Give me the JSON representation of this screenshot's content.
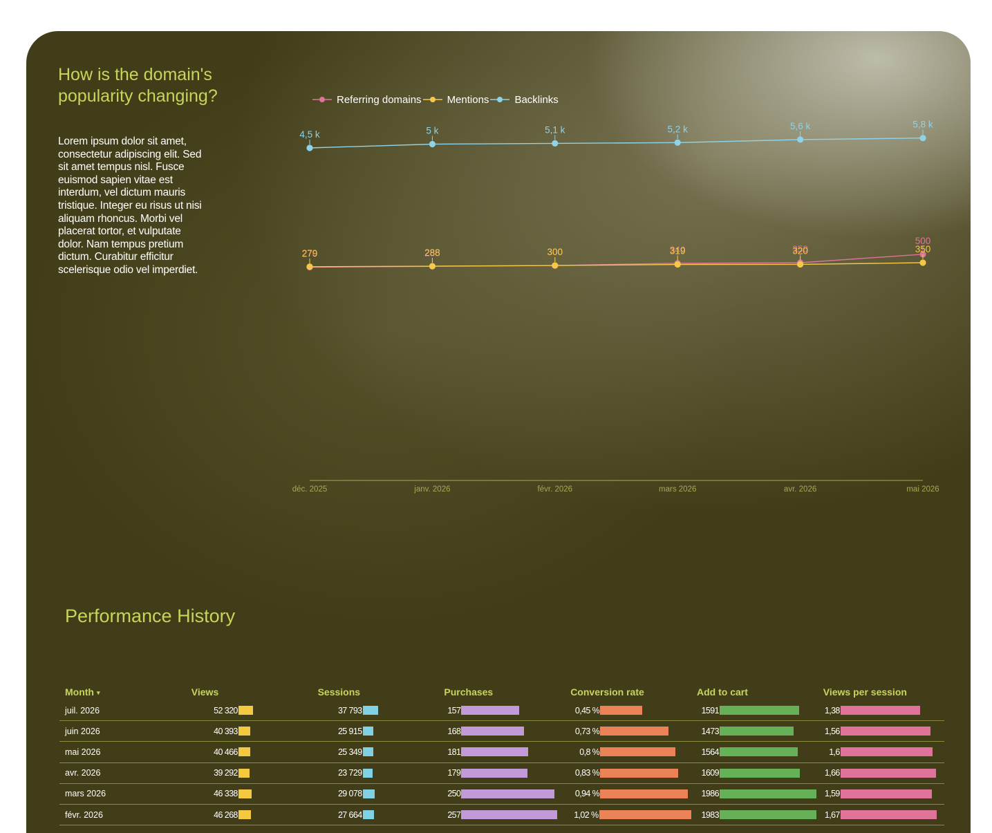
{
  "header": {
    "title": "How is the domain's popularity changing?",
    "description": "Lorem ipsum dolor sit amet, consectetur adipiscing elit. Sed sit amet tempus nisl. Fusce euismod sapien vitae est interdum, vel dictum mauris tristique. Integer eu risus ut nisi aliquam rhoncus. Morbi vel placerat tortor, et vulputate dolor. Nam tempus pretium dictum. Curabitur efficitur scelerisque odio vel imperdiet."
  },
  "chart_data": {
    "type": "line",
    "title": "",
    "xlabel": "",
    "ylabel": "",
    "x": [
      "déc. 2025",
      "janv. 2026",
      "févr. 2026",
      "mars 2026",
      "avr. 2026",
      "mai 2026"
    ],
    "series": [
      {
        "name": "Referring domains",
        "color": "#e0739a",
        "values": [
          270,
          285,
          300,
          340,
          350,
          500
        ],
        "labels": [
          "270",
          "285",
          "300",
          "340",
          "350",
          "500"
        ]
      },
      {
        "name": "Mentions",
        "color": "#f5c84a",
        "values": [
          279,
          288,
          300,
          319,
          320,
          350
        ],
        "labels": [
          "279",
          "288",
          "300",
          "319",
          "320",
          "350"
        ]
      },
      {
        "name": "Backlinks",
        "color": "#8fd3e8",
        "values": [
          4500,
          5000,
          5100,
          5200,
          5600,
          5800
        ],
        "labels": [
          "4,5 k",
          "5 k",
          "5,1 k",
          "5,2 k",
          "5,6 k",
          "5,8 k"
        ]
      }
    ],
    "legend": "top-left",
    "grid": false,
    "x_axis_color": "#a8a855"
  },
  "performance": {
    "title": "Performance History",
    "sort_indicator": "▾",
    "columns": [
      {
        "label": "Month",
        "color": null
      },
      {
        "label": "Views",
        "color": "#f5c842"
      },
      {
        "label": "Sessions",
        "color": "#7fd1e3"
      },
      {
        "label": "Purchases",
        "color": "#c29ad9"
      },
      {
        "label": "Conversion rate",
        "color": "#ec8258"
      },
      {
        "label": "Add to cart",
        "color": "#66b058"
      },
      {
        "label": "Views per session",
        "color": "#e07399"
      }
    ],
    "rows": [
      {
        "month": "juil. 2026",
        "views": "52 320",
        "sessions": "37 793",
        "purchases": "157",
        "conversion": "0,45 %",
        "cart": "1591",
        "vps": "1,38"
      },
      {
        "month": "juin 2026",
        "views": "40 393",
        "sessions": "25 915",
        "purchases": "168",
        "conversion": "0,73 %",
        "cart": "1473",
        "vps": "1,56"
      },
      {
        "month": "mai 2026",
        "views": "40 466",
        "sessions": "25 349",
        "purchases": "181",
        "conversion": "0,8 %",
        "cart": "1564",
        "vps": "1,6"
      },
      {
        "month": "avr. 2026",
        "views": "39 292",
        "sessions": "23 729",
        "purchases": "179",
        "conversion": "0,83 %",
        "cart": "1609",
        "vps": "1,66"
      },
      {
        "month": "mars 2026",
        "views": "46 338",
        "sessions": "29 078",
        "purchases": "250",
        "conversion": "0,94 %",
        "cart": "1986",
        "vps": "1,59"
      },
      {
        "month": "févr. 2026",
        "views": "46 268",
        "sessions": "27 664",
        "purchases": "257",
        "conversion": "1,02 %",
        "cart": "1983",
        "vps": "1,67"
      }
    ],
    "bar_fraction": {
      "views": [
        0.149,
        0.118,
        0.118,
        0.112,
        0.136,
        0.132
      ],
      "sessions": [
        0.158,
        0.108,
        0.106,
        0.099,
        0.121,
        0.115
      ],
      "purchases": [
        0.603,
        0.648,
        0.695,
        0.688,
        0.965,
        0.99
      ],
      "conversion": [
        0.436,
        0.707,
        0.775,
        0.804,
        0.91,
        0.988
      ],
      "cart": [
        0.823,
        0.762,
        0.808,
        0.832,
        1.0,
        1.0
      ],
      "vps": [
        0.819,
        0.926,
        0.95,
        0.985,
        0.944,
        0.991
      ]
    }
  }
}
